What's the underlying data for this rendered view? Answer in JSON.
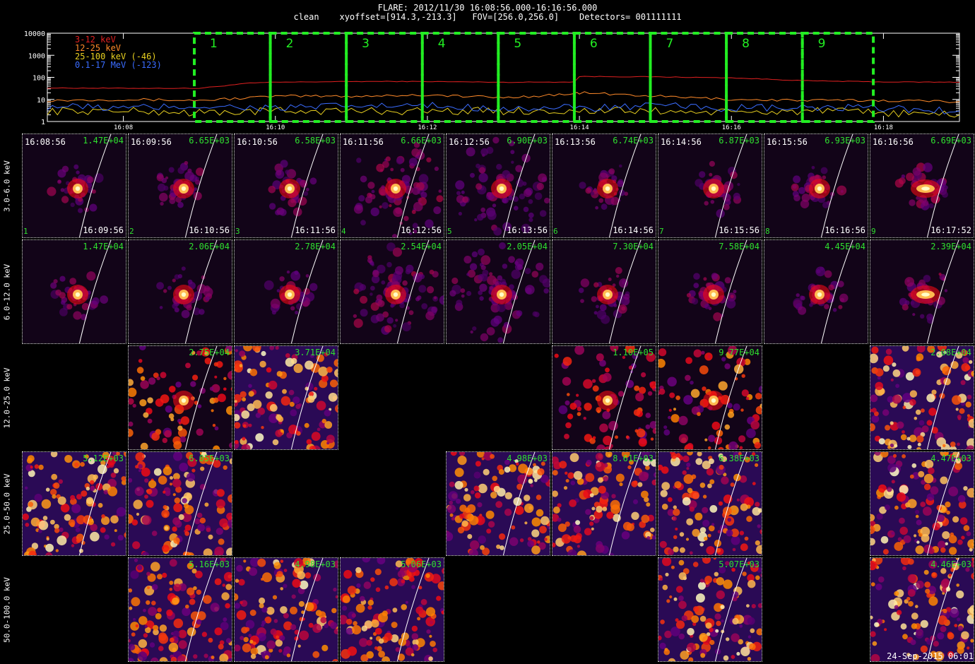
{
  "header": {
    "line1": "FLARE: 2012/11/30 16:08:56.000-16:16:56.000",
    "line2": "clean    xyoffset=[914.3,-213.3]   FOV=[256.0,256.0]    Detectors= 001111111"
  },
  "timestamp": "24-Sep-2015 06:01",
  "colors": {
    "series_3_12": "#e02020",
    "series_12_25": "#ff8a2a",
    "series_25_100": "#e8d020",
    "series_01_17": "#3a6cff",
    "interval_box": "#22ee22",
    "peak_text": "#2fe02f"
  },
  "chart_data": {
    "type": "line",
    "title": "",
    "xlabel": "",
    "ylabel": "",
    "y_scale": "log",
    "ylim": [
      1,
      10000
    ],
    "y_ticks": [
      "1",
      "10",
      "100",
      "1000",
      "10000"
    ],
    "x_ticks": [
      "16:08",
      "16:10",
      "16:12",
      "16:14",
      "16:16",
      "16:18"
    ],
    "xlim": [
      "16:07:00",
      "16:19:00"
    ],
    "grid": false,
    "legend_position": "top-left",
    "series": [
      {
        "name": "3-12 keV",
        "color": "#e02020",
        "x": [
          "16:07:00",
          "16:08:00",
          "16:09:00",
          "16:09:40",
          "16:10:00",
          "16:11:00",
          "16:12:00",
          "16:13:00",
          "16:13:56",
          "16:14:00",
          "16:15:00",
          "16:16:00",
          "16:17:00",
          "16:18:00",
          "16:19:00"
        ],
        "values": [
          33,
          32,
          32,
          55,
          60,
          65,
          65,
          60,
          62,
          110,
          105,
          95,
          70,
          62,
          60
        ]
      },
      {
        "name": "12-25 keV",
        "color": "#ff8a2a",
        "x": [
          "16:07:00",
          "16:08:00",
          "16:09:00",
          "16:09:40",
          "16:10:00",
          "16:11:00",
          "16:12:00",
          "16:13:00",
          "16:13:56",
          "16:14:00",
          "16:15:00",
          "16:16:00",
          "16:17:00",
          "16:18:00",
          "16:19:00"
        ],
        "values": [
          9,
          10,
          9,
          12,
          14,
          14,
          16,
          12,
          18,
          20,
          14,
          10,
          9,
          9,
          8
        ]
      },
      {
        "name": "25-100 keV (-46)",
        "color": "#e8d020",
        "x": [
          "16:07:00",
          "16:08:00",
          "16:09:00",
          "16:10:00",
          "16:11:00",
          "16:12:00",
          "16:13:00",
          "16:14:00",
          "16:15:00",
          "16:16:00",
          "16:17:00",
          "16:18:00",
          "16:19:00"
        ],
        "values": [
          3,
          3,
          2.5,
          3,
          3,
          3,
          3,
          3,
          3,
          2.5,
          3,
          2.5,
          2
        ]
      },
      {
        "name": "0.1-17 MeV (-123)",
        "color": "#3a6cff",
        "x": [
          "16:07:00",
          "16:08:00",
          "16:09:00",
          "16:10:00",
          "16:11:00",
          "16:12:00",
          "16:13:00",
          "16:14:00",
          "16:15:00",
          "16:16:00",
          "16:17:00",
          "16:18:00",
          "16:19:00"
        ],
        "values": [
          5,
          4,
          5,
          4,
          5,
          5,
          4,
          4,
          5,
          4,
          4,
          4,
          3
        ]
      }
    ],
    "intervals": [
      {
        "label": "1",
        "start": "16:08:56",
        "end": "16:09:56"
      },
      {
        "label": "2",
        "start": "16:09:56",
        "end": "16:10:56"
      },
      {
        "label": "3",
        "start": "16:10:56",
        "end": "16:11:56"
      },
      {
        "label": "4",
        "start": "16:11:56",
        "end": "16:12:56"
      },
      {
        "label": "5",
        "start": "16:12:56",
        "end": "16:13:56"
      },
      {
        "label": "6",
        "start": "16:13:56",
        "end": "16:14:56"
      },
      {
        "label": "7",
        "start": "16:14:56",
        "end": "16:15:56"
      },
      {
        "label": "8",
        "start": "16:15:56",
        "end": "16:16:56"
      },
      {
        "label": "9",
        "start": "16:16:56",
        "end": "16:17:52"
      }
    ]
  },
  "grid": {
    "rows": [
      "3.0-6.0 keV",
      "6.0-12.0 keV",
      "12.0-25.0 keV",
      "25.0-50.0 keV",
      "50.0-100.0 keV"
    ],
    "time_starts": [
      "16:08:56",
      "16:09:56",
      "16:10:56",
      "16:11:56",
      "16:12:56",
      "16:13:56",
      "16:14:56",
      "16:15:56",
      "16:16:56"
    ],
    "time_ends": [
      "16:09:56",
      "16:10:56",
      "16:11:56",
      "16:12:56",
      "16:13:56",
      "16:14:56",
      "16:15:56",
      "16:16:56",
      "16:17:52"
    ],
    "images": [
      {
        "row": 0,
        "col": 0,
        "peak": "1.47E+04",
        "style": "source",
        "brightness": 0.9
      },
      {
        "row": 0,
        "col": 1,
        "peak": "6.65E+03",
        "style": "source",
        "brightness": 0.9
      },
      {
        "row": 0,
        "col": 2,
        "peak": "6.58E+03",
        "style": "source",
        "brightness": 0.9
      },
      {
        "row": 0,
        "col": 3,
        "peak": "6.66E+03",
        "style": "diffuse",
        "brightness": 1.0
      },
      {
        "row": 0,
        "col": 4,
        "peak": "6.90E+03",
        "style": "diffuse",
        "brightness": 0.8
      },
      {
        "row": 0,
        "col": 5,
        "peak": "6.74E+03",
        "style": "source",
        "brightness": 0.9
      },
      {
        "row": 0,
        "col": 6,
        "peak": "6.87E+03",
        "style": "source",
        "brightness": 0.9
      },
      {
        "row": 0,
        "col": 7,
        "peak": "6.93E+03",
        "style": "source",
        "brightness": 0.9
      },
      {
        "row": 0,
        "col": 8,
        "peak": "6.69E+03",
        "style": "elongated",
        "brightness": 1.0
      },
      {
        "row": 1,
        "col": 0,
        "peak": "1.47E+04",
        "style": "source",
        "brightness": 0.9
      },
      {
        "row": 1,
        "col": 1,
        "peak": "2.06E+04",
        "style": "source",
        "brightness": 0.9
      },
      {
        "row": 1,
        "col": 2,
        "peak": "2.78E+04",
        "style": "source",
        "brightness": 0.9
      },
      {
        "row": 1,
        "col": 3,
        "peak": "2.54E+04",
        "style": "diffuse",
        "brightness": 1.0
      },
      {
        "row": 1,
        "col": 4,
        "peak": "2.05E+04",
        "style": "diffuse",
        "brightness": 0.8
      },
      {
        "row": 1,
        "col": 5,
        "peak": "7.30E+04",
        "style": "source",
        "brightness": 0.9
      },
      {
        "row": 1,
        "col": 6,
        "peak": "7.58E+04",
        "style": "source",
        "brightness": 0.9
      },
      {
        "row": 1,
        "col": 7,
        "peak": "4.45E+04",
        "style": "source",
        "brightness": 0.9
      },
      {
        "row": 1,
        "col": 8,
        "peak": "2.39E+04",
        "style": "elongated",
        "brightness": 1.0
      },
      {
        "row": 2,
        "col": 1,
        "peak": "2.75E+04",
        "style": "noisy-source",
        "brightness": 0.8
      },
      {
        "row": 2,
        "col": 2,
        "peak": "3.71E+04",
        "style": "noise",
        "brightness": 1.0
      },
      {
        "row": 2,
        "col": 5,
        "peak": "1.10E+05",
        "style": "noisy-source",
        "brightness": 0.6
      },
      {
        "row": 2,
        "col": 6,
        "peak": "9.77E+04",
        "style": "noisy-source",
        "brightness": 0.8
      },
      {
        "row": 2,
        "col": 8,
        "peak": "2.08E+04",
        "style": "noise",
        "brightness": 1.0
      },
      {
        "row": 3,
        "col": 0,
        "peak": "5.12E+03",
        "style": "noise",
        "brightness": 1.0
      },
      {
        "row": 3,
        "col": 1,
        "peak": "6.05E+03",
        "style": "noise",
        "brightness": 1.0
      },
      {
        "row": 3,
        "col": 4,
        "peak": "4.98E+03",
        "style": "noise",
        "brightness": 1.0
      },
      {
        "row": 3,
        "col": 5,
        "peak": "8.61E+03",
        "style": "noise",
        "brightness": 1.0
      },
      {
        "row": 3,
        "col": 6,
        "peak": "6.38E+03",
        "style": "noise",
        "brightness": 1.0
      },
      {
        "row": 3,
        "col": 8,
        "peak": "4.47E+03",
        "style": "noise",
        "brightness": 1.0
      },
      {
        "row": 4,
        "col": 1,
        "peak": "5.16E+03",
        "style": "noise",
        "brightness": 0.8
      },
      {
        "row": 4,
        "col": 2,
        "peak": "4.98E+03",
        "style": "noise",
        "brightness": 1.0
      },
      {
        "row": 4,
        "col": 3,
        "peak": "5.06E+03",
        "style": "noise",
        "brightness": 0.9
      },
      {
        "row": 4,
        "col": 6,
        "peak": "5.07E+03",
        "style": "noise",
        "brightness": 1.0
      },
      {
        "row": 4,
        "col": 8,
        "peak": "4.46E+03",
        "style": "noise",
        "brightness": 1.0
      }
    ]
  }
}
